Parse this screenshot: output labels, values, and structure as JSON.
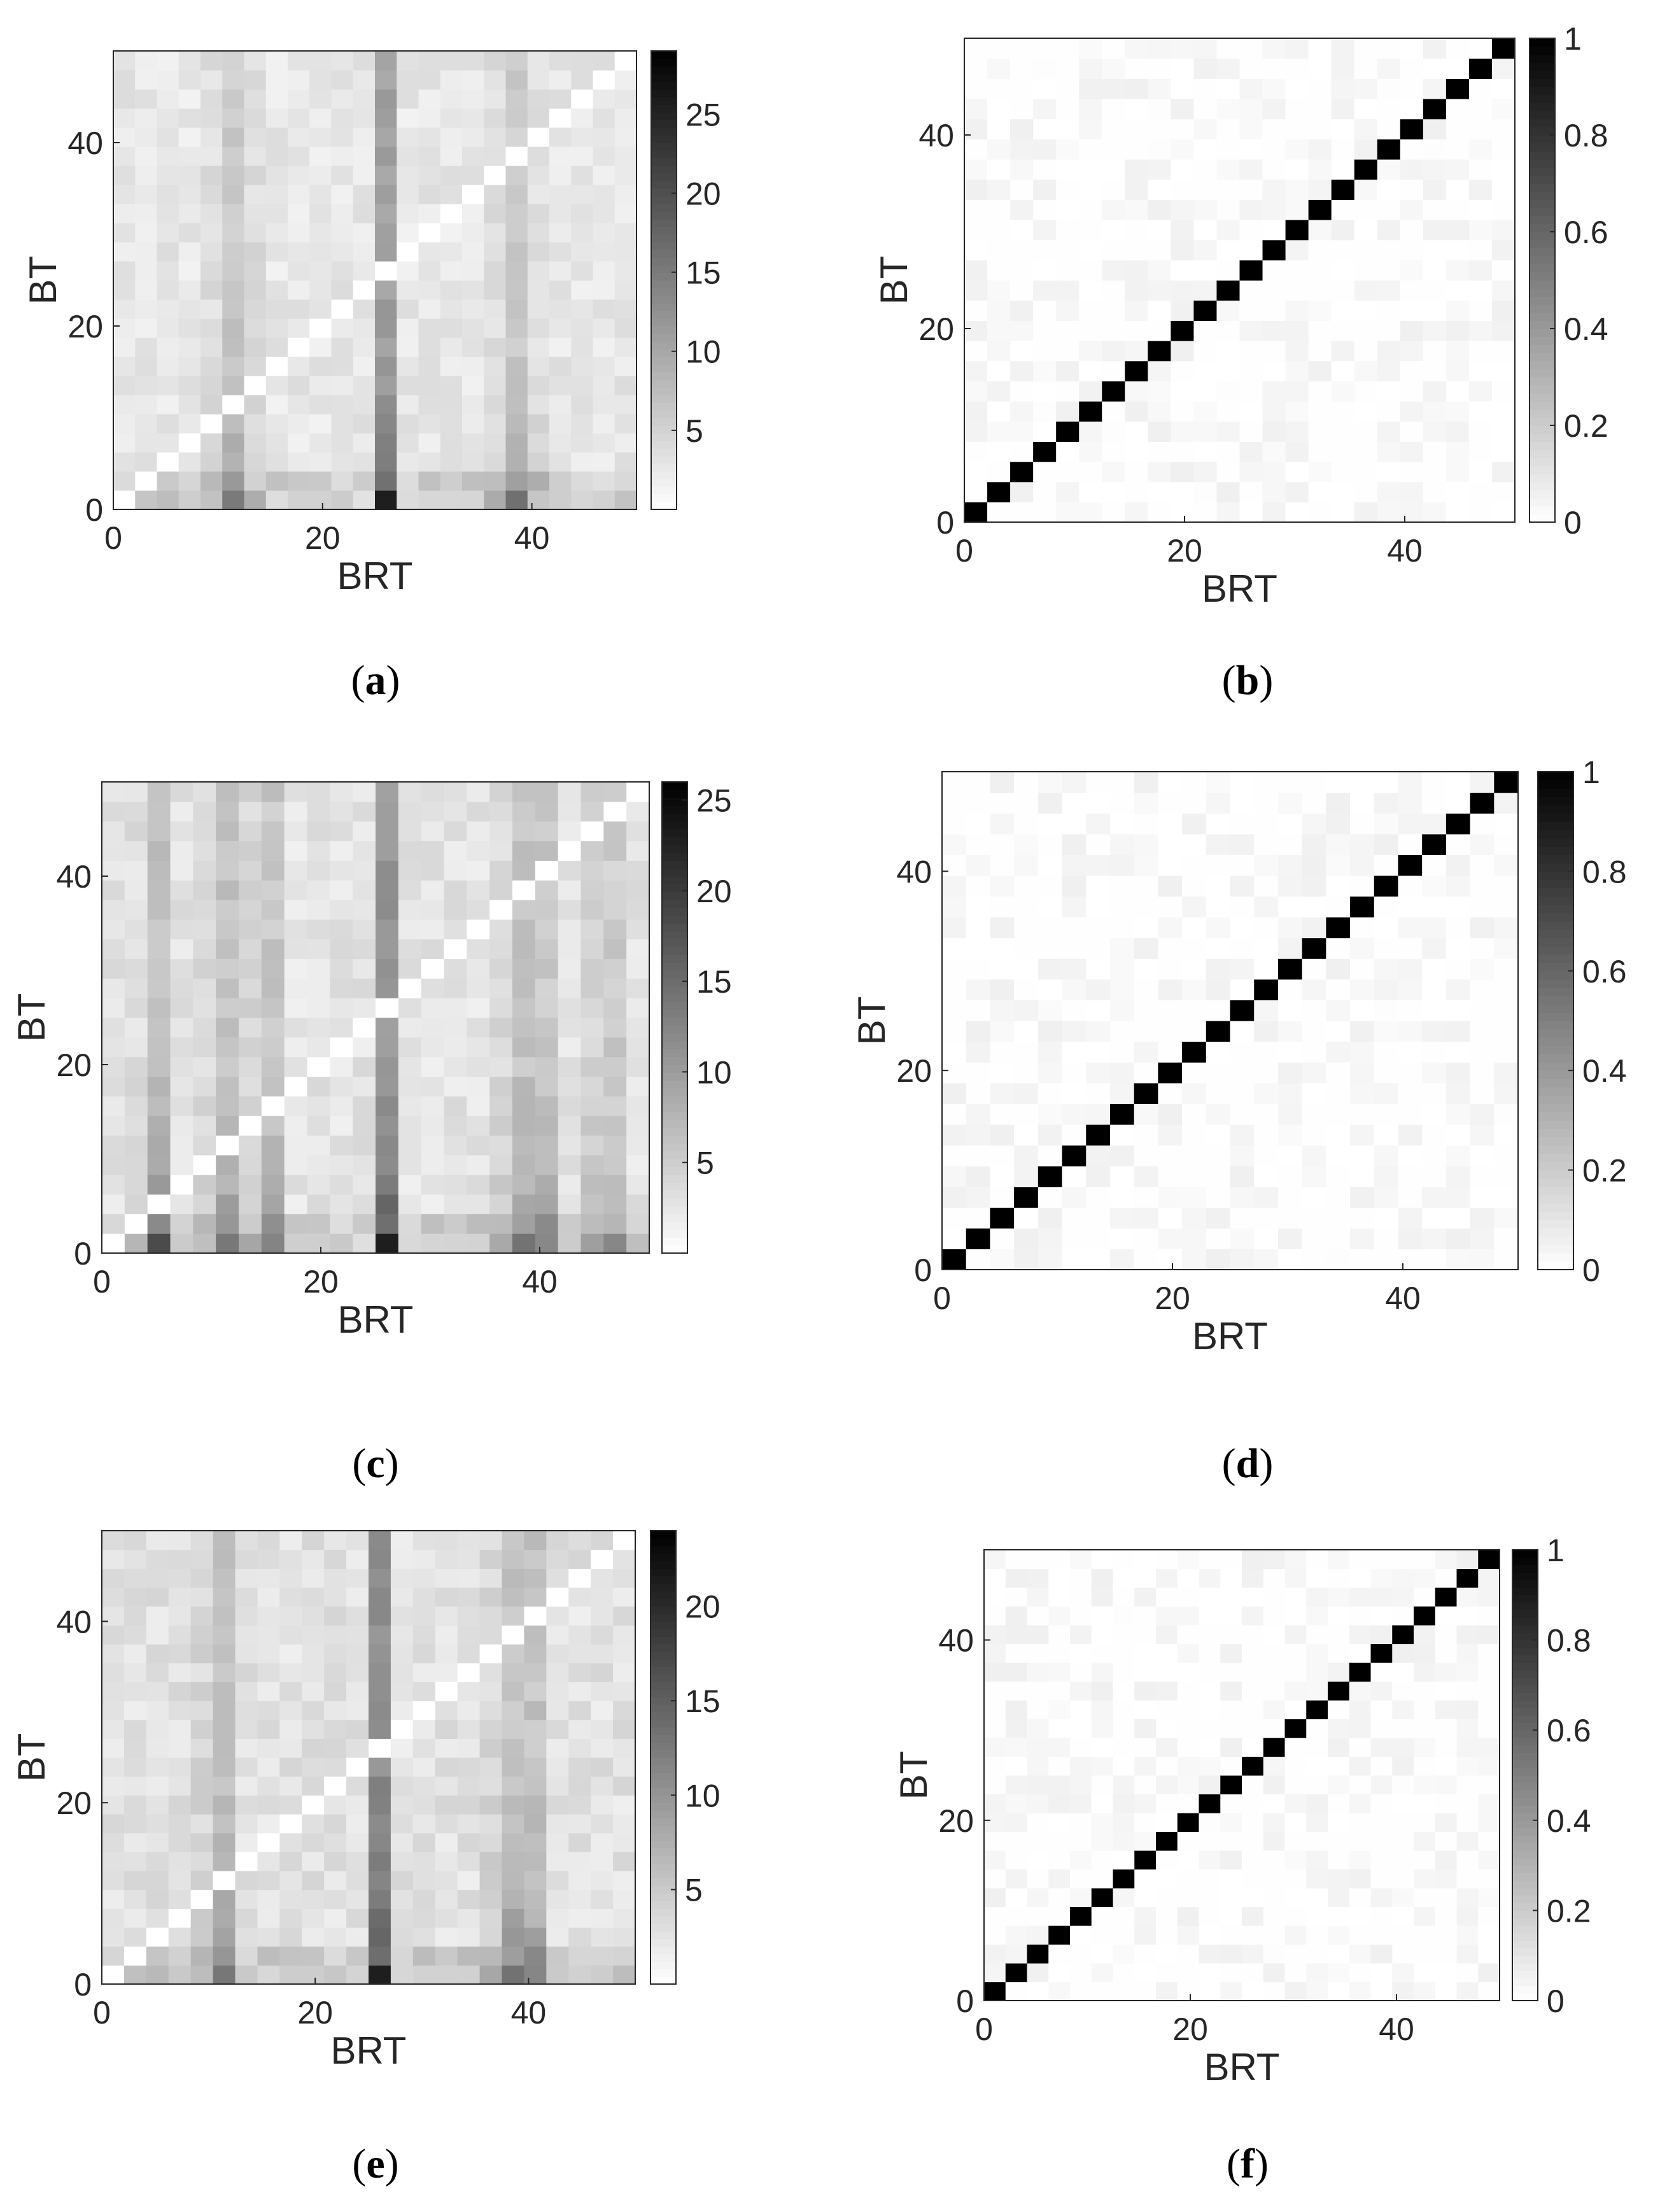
{
  "chart_data": [
    {
      "type": "heatmap",
      "panel": "a",
      "caption": "(a)",
      "xlabel": "BRT",
      "ylabel": "BT",
      "xticks": [
        0,
        20,
        40
      ],
      "yticks": [
        0,
        20,
        40
      ],
      "xlim": [
        0,
        50
      ],
      "ylim": [
        0,
        50
      ],
      "grid": false,
      "cells_per_axis": 24,
      "colorbar": {
        "range": [
          0,
          29
        ],
        "ticks": [
          5,
          10,
          15,
          20,
          25
        ]
      },
      "column_emphasis": [
        11,
        12,
        26,
        38,
        39
      ],
      "bottom_row_values": {
        "min": 3,
        "max": 29
      },
      "diagonal": "near-zero (white)"
    },
    {
      "type": "heatmap",
      "panel": "b",
      "caption": "(b)",
      "xlabel": "BRT",
      "ylabel": "BT",
      "xticks": [
        0,
        20,
        40
      ],
      "yticks": [
        0,
        20,
        40
      ],
      "xlim": [
        0,
        50
      ],
      "ylim": [
        0,
        50
      ],
      "grid": false,
      "cells_per_axis": 24,
      "colorbar": {
        "range": [
          0,
          1
        ],
        "ticks": [
          0,
          0.2,
          0.4,
          0.6,
          0.8,
          1
        ]
      },
      "diagonal": "1 (black)",
      "off_diagonal": "approximately 0"
    },
    {
      "type": "heatmap",
      "panel": "c",
      "caption": "(c)",
      "xlabel": "BRT",
      "ylabel": "BT",
      "xticks": [
        0,
        20,
        40
      ],
      "yticks": [
        0,
        20,
        40
      ],
      "xlim": [
        0,
        50
      ],
      "ylim": [
        0,
        50
      ],
      "grid": false,
      "cells_per_axis": 24,
      "colorbar": {
        "range": [
          0,
          26
        ],
        "ticks": [
          5,
          10,
          15,
          20,
          25
        ]
      },
      "column_emphasis": [
        5,
        11,
        15,
        26,
        38,
        40,
        46
      ],
      "bottom_row_values": {
        "min": 3,
        "max": 26
      },
      "diagonal": "near-zero (white)"
    },
    {
      "type": "heatmap",
      "panel": "d",
      "caption": "(d)",
      "xlabel": "BRT",
      "ylabel": "BT",
      "xticks": [
        0,
        20,
        40
      ],
      "yticks": [
        0,
        20,
        40
      ],
      "xlim": [
        0,
        50
      ],
      "ylim": [
        0,
        50
      ],
      "grid": false,
      "cells_per_axis": 24,
      "colorbar": {
        "range": [
          0,
          1
        ],
        "ticks": [
          0,
          0.2,
          0.4,
          0.6,
          0.8,
          1
        ]
      },
      "diagonal": "1 (black)",
      "off_diagonal": "approximately 0"
    },
    {
      "type": "heatmap",
      "panel": "e",
      "caption": "(e)",
      "xlabel": "BRT",
      "ylabel": "BT",
      "xticks": [
        0,
        20,
        40
      ],
      "yticks": [
        0,
        20,
        40
      ],
      "xlim": [
        0,
        50
      ],
      "ylim": [
        0,
        50
      ],
      "grid": false,
      "cells_per_axis": 24,
      "colorbar": {
        "range": [
          0,
          24
        ],
        "ticks": [
          5,
          10,
          15,
          20
        ]
      },
      "column_emphasis": [
        11,
        26,
        38,
        40
      ],
      "bottom_row_values": {
        "min": 3,
        "max": 24
      },
      "diagonal": "near-zero (white)"
    },
    {
      "type": "heatmap",
      "panel": "f",
      "caption": "(f)",
      "xlabel": "BRT",
      "ylabel": "BT",
      "xticks": [
        0,
        20,
        40
      ],
      "yticks": [
        0,
        20,
        40
      ],
      "xlim": [
        0,
        50
      ],
      "ylim": [
        0,
        50
      ],
      "grid": false,
      "cells_per_axis": 24,
      "colorbar": {
        "range": [
          0,
          1
        ],
        "ticks": [
          0,
          0.2,
          0.4,
          0.6,
          0.8,
          1
        ]
      },
      "diagonal": "1 (black)",
      "off_diagonal": "approximately 0"
    }
  ]
}
